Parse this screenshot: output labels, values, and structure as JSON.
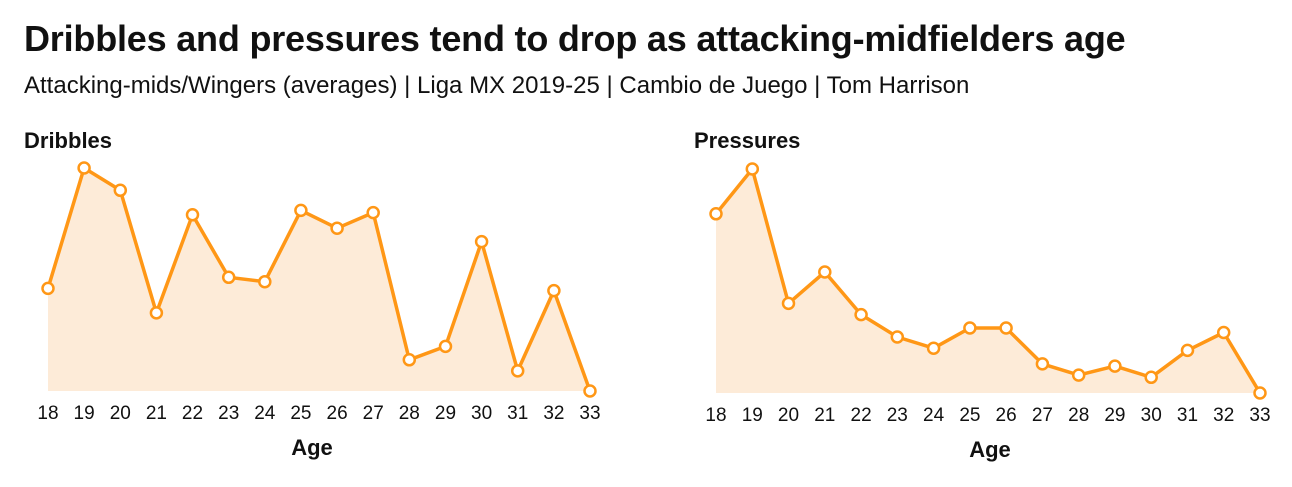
{
  "title": "Dribbles and pressures tend to drop as attacking-midfielders age",
  "subtitle": "Attacking-mids/Wingers (averages) | Liga MX 2019-25 | Cambio de Juego | Tom Harrison",
  "colors": {
    "line": "#FF9716",
    "fill": "#FDEBD8",
    "marker_fill": "#ffffff"
  },
  "chart_data": [
    {
      "type": "area",
      "title": "Dribbles",
      "xlabel": "Age",
      "ylabel": "",
      "x": [
        18,
        19,
        20,
        21,
        22,
        23,
        24,
        25,
        26,
        27,
        28,
        29,
        30,
        31,
        32,
        33
      ],
      "values": [
        0.46,
        1.0,
        0.9,
        0.35,
        0.79,
        0.51,
        0.49,
        0.81,
        0.73,
        0.8,
        0.14,
        0.2,
        0.67,
        0.09,
        0.45,
        0.0
      ],
      "ylim": [
        0,
        1
      ],
      "grid": false,
      "legend": "none"
    },
    {
      "type": "area",
      "title": "Pressures",
      "xlabel": "Age",
      "ylabel": "",
      "x": [
        18,
        19,
        20,
        21,
        22,
        23,
        24,
        25,
        26,
        27,
        28,
        29,
        30,
        31,
        32,
        33
      ],
      "values": [
        0.8,
        1.0,
        0.4,
        0.54,
        0.35,
        0.25,
        0.2,
        0.29,
        0.29,
        0.13,
        0.08,
        0.12,
        0.07,
        0.19,
        0.27,
        0.0
      ],
      "ylim": [
        0,
        1
      ],
      "grid": false,
      "legend": "none"
    }
  ]
}
